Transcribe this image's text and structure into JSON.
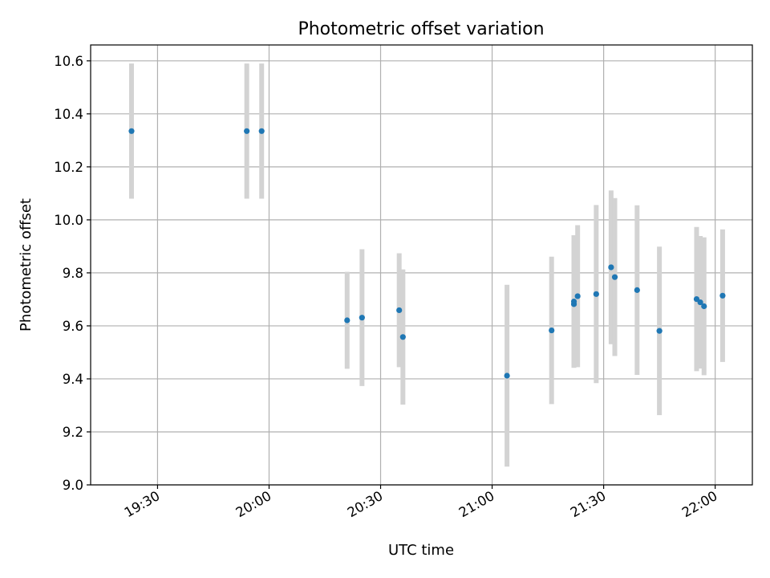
{
  "chart_data": {
    "type": "scatter",
    "title": "Photometric offset variation",
    "xlabel": "UTC time",
    "ylabel": "Photometric offset",
    "x_axis": "time",
    "xlim": [
      "19:12",
      "22:10"
    ],
    "ylim": [
      9.0,
      10.66
    ],
    "x_ticks": [
      "19:30",
      "20:00",
      "20:30",
      "21:00",
      "21:30",
      "22:00"
    ],
    "y_ticks": [
      "9.0",
      "9.2",
      "9.4",
      "9.6",
      "9.8",
      "10.0",
      "10.2",
      "10.4",
      "10.6"
    ],
    "grid": true,
    "marker_color": "#1f77b4",
    "errorbar_color": "#d3d3d3",
    "series": [
      {
        "points": [
          {
            "x": "19:23",
            "y": 10.335,
            "err": 0.255
          },
          {
            "x": "19:54",
            "y": 10.335,
            "err": 0.255
          },
          {
            "x": "19:58",
            "y": 10.335,
            "err": 0.255
          },
          {
            "x": "20:21",
            "y": 9.621,
            "err": 0.183
          },
          {
            "x": "20:25",
            "y": 9.631,
            "err": 0.258
          },
          {
            "x": "20:35",
            "y": 9.659,
            "err": 0.215
          },
          {
            "x": "20:36",
            "y": 9.558,
            "err": 0.255
          },
          {
            "x": "21:04",
            "y": 9.412,
            "err": 0.343
          },
          {
            "x": "21:16",
            "y": 9.583,
            "err": 0.278
          },
          {
            "x": "21:22",
            "y": 9.682,
            "err": 0.24
          },
          {
            "x": "21:22",
            "y": 9.692,
            "err": 0.25
          },
          {
            "x": "21:23",
            "y": 9.712,
            "err": 0.268
          },
          {
            "x": "21:28",
            "y": 9.72,
            "err": 0.336
          },
          {
            "x": "21:32",
            "y": 9.821,
            "err": 0.29
          },
          {
            "x": "21:33",
            "y": 9.784,
            "err": 0.298
          },
          {
            "x": "21:39",
            "y": 9.735,
            "err": 0.32
          },
          {
            "x": "21:45",
            "y": 9.581,
            "err": 0.318
          },
          {
            "x": "21:55",
            "y": 9.701,
            "err": 0.272
          },
          {
            "x": "21:56",
            "y": 9.689,
            "err": 0.25
          },
          {
            "x": "21:57",
            "y": 9.674,
            "err": 0.26
          },
          {
            "x": "22:02",
            "y": 9.714,
            "err": 0.25
          }
        ]
      }
    ]
  }
}
